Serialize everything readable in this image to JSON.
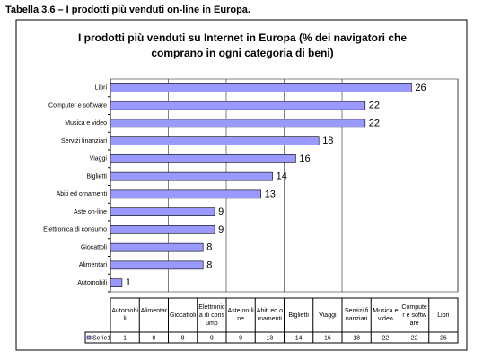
{
  "heading": "Tabella 3.6 – I prodotti più venduti on-line in Europa.",
  "chart_data": {
    "type": "bar",
    "orientation": "horizontal",
    "title": "I prodotti più venduti su Internet in Europa (% dei navigatori che comprano in ogni categoria di beni)",
    "categories": [
      "Automobili",
      "Alimentari",
      "Giocattoli",
      "Elettronica di consumo",
      "Aste on-line",
      "Abiti ed ornamenti",
      "Biglietti",
      "Viaggi",
      "Servizi finanziari",
      "Musica e video",
      "Computer e software",
      "Libri"
    ],
    "series": [
      {
        "name": "Serie1",
        "color": "#9999ff",
        "values": [
          1,
          8,
          8,
          9,
          9,
          13,
          14,
          16,
          18,
          22,
          22,
          26
        ]
      }
    ],
    "xlim": [
      0,
      30
    ],
    "xticks": [
      0,
      5,
      10,
      15,
      20,
      25,
      30
    ],
    "grid": true,
    "data_table": true
  }
}
